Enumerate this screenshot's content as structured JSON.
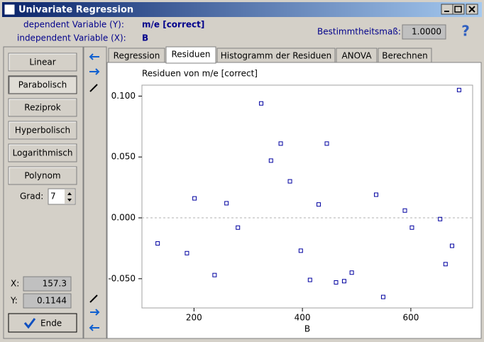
{
  "window": {
    "title": "Univariate Regression"
  },
  "header": {
    "dep_label": "dependent Variable (Y):",
    "dep_value": "m/e [correct]",
    "indep_label": "independent Variable (X):",
    "indep_value": "B",
    "r2_label": "Bestimmtheitsmaß:",
    "r2_value": "1.0000",
    "help": "?"
  },
  "buttons": [
    "Linear",
    "Parabolisch",
    "Reziprok",
    "Hyperbolisch",
    "Logarithmisch",
    "Polynom"
  ],
  "grad": {
    "label": "Grad:",
    "value": "7"
  },
  "cursor": {
    "x_label": "X:",
    "x_value": "157.3",
    "y_label": "Y:",
    "y_value": "0.1144"
  },
  "ende": "Ende",
  "tabs": [
    "Regression",
    "Residuen",
    "Histogramm der Residuen",
    "ANOVA",
    "Berechnen"
  ],
  "chart_data": {
    "type": "scatter",
    "title": "Residuen von m/e [correct]",
    "x_label": "B",
    "xlim": [
      104,
      714
    ],
    "ylim": [
      -0.074,
      0.109
    ],
    "xticks": [
      200,
      400,
      600
    ],
    "yticks": [
      {
        "value": 0.1,
        "label": "0.100"
      },
      {
        "value": 0.05,
        "label": "0.050"
      },
      {
        "value": 0,
        "label": "0.000"
      },
      {
        "value": -0.05,
        "label": "-0.050"
      }
    ],
    "hline": 0,
    "series": [
      {
        "name": "Residuen",
        "color": "#0000a0",
        "x": [
          133,
          187,
          201,
          238,
          260,
          281,
          324,
          342,
          360,
          377,
          397,
          414,
          430,
          445,
          462,
          477,
          491,
          536,
          549,
          589,
          602,
          654,
          664,
          676,
          689
        ],
        "values": [
          -0.021,
          -0.029,
          0.016,
          -0.047,
          0.012,
          -0.008,
          0.094,
          0.047,
          0.061,
          0.03,
          -0.027,
          -0.051,
          0.011,
          0.061,
          -0.053,
          -0.052,
          -0.045,
          0.019,
          -0.065,
          0.006,
          -0.008,
          -0.001,
          -0.038,
          -0.023,
          0.105
        ]
      }
    ]
  }
}
